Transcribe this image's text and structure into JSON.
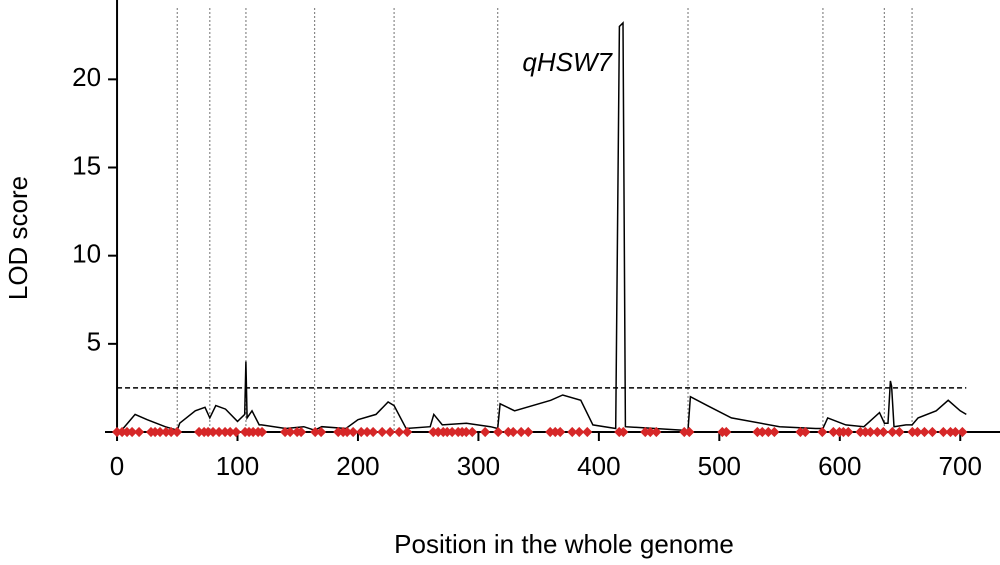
{
  "chart_data": {
    "type": "line",
    "xlabel": "Position in the whole genome",
    "ylabel": "LOD score",
    "annotation": "qHSW7",
    "xlim": [
      -10,
      733
    ],
    "ylim": [
      0,
      24.5
    ],
    "xticks": [
      0,
      100,
      200,
      300,
      400,
      500,
      600,
      700
    ],
    "yticks": [
      5,
      10,
      15,
      20
    ],
    "color": "#000000",
    "x": [
      0,
      5,
      15,
      25,
      40,
      50,
      52,
      65,
      73,
      77,
      82,
      90,
      100,
      106,
      107,
      108,
      112,
      118,
      120,
      140,
      155,
      164,
      170,
      190,
      200,
      215,
      225,
      230,
      240,
      260,
      263,
      270,
      290,
      310,
      316,
      318,
      330,
      360,
      370,
      385,
      395,
      414,
      417,
      420,
      422,
      470,
      474,
      476,
      490,
      510,
      550,
      580,
      586,
      590,
      605,
      620,
      633,
      637,
      640,
      642,
      643,
      645,
      655,
      660,
      665,
      680,
      690,
      700,
      705
    ],
    "values": [
      0,
      0.2,
      1.0,
      0.7,
      0.3,
      0.1,
      0.5,
      1.2,
      1.4,
      0.8,
      1.5,
      1.3,
      0.6,
      1.0,
      4.0,
      0.8,
      1.2,
      0.4,
      0.4,
      0.2,
      0.3,
      0.1,
      0.3,
      0.2,
      0.7,
      1.0,
      1.7,
      1.5,
      0.2,
      0.3,
      1.0,
      0.4,
      0.5,
      0.3,
      0.2,
      1.6,
      1.2,
      1.8,
      2.1,
      1.8,
      0.4,
      0.2,
      23.0,
      23.2,
      0.3,
      0.1,
      0.1,
      2.0,
      1.5,
      0.8,
      0.3,
      0.2,
      0.2,
      0.8,
      0.4,
      0.3,
      1.1,
      0.5,
      0.5,
      2.9,
      2.6,
      0.3,
      0.4,
      0.4,
      0.8,
      1.2,
      1.8,
      1.2,
      1.0
    ],
    "threshold": 2.5,
    "threshold_x": [
      0,
      705
    ],
    "boundaries": [
      50,
      77,
      107,
      164,
      230,
      316,
      474,
      586,
      637,
      660
    ],
    "marker_color": "#d62728",
    "markers": [
      0,
      4.2,
      8.3,
      12.5,
      18.3,
      28.2,
      31.6,
      35.7,
      40.7,
      44.9,
      49.8,
      68.1,
      72.3,
      75.6,
      79.7,
      84.7,
      89.7,
      93.9,
      98.8,
      106.3,
      109.6,
      113,
      117.1,
      120.4,
      139.5,
      143.7,
      149.5,
      152.8,
      164.5,
      169.4,
      183.6,
      187.7,
      191,
      196,
      202.7,
      207.6,
      212.6,
      220.1,
      226.7,
      234.2,
      240.9,
      262.5,
      266.6,
      270.8,
      274.1,
      278.2,
      283.2,
      286.5,
      289.9,
      294.9,
      305.6,
      316.4,
      324.8,
      328.9,
      335.5,
      341.4,
      359.6,
      363.8,
      367.9,
      377.9,
      383.7,
      390.4,
      416.9,
      420.3,
      438.5,
      442.7,
      447.7,
      470.9,
      475.1,
      502.5,
      505.8,
      531.6,
      535.7,
      540.7,
      545.7,
      567.3,
      571.4,
      585.5,
      594.7,
      599.7,
      603,
      607.1,
      617.1,
      621.3,
      625.4,
      631.2,
      636.2,
      643.7,
      649.5,
      660.3,
      664.5,
      670.3,
      676.9,
      686,
      691.9,
      696,
      701.8
    ]
  }
}
